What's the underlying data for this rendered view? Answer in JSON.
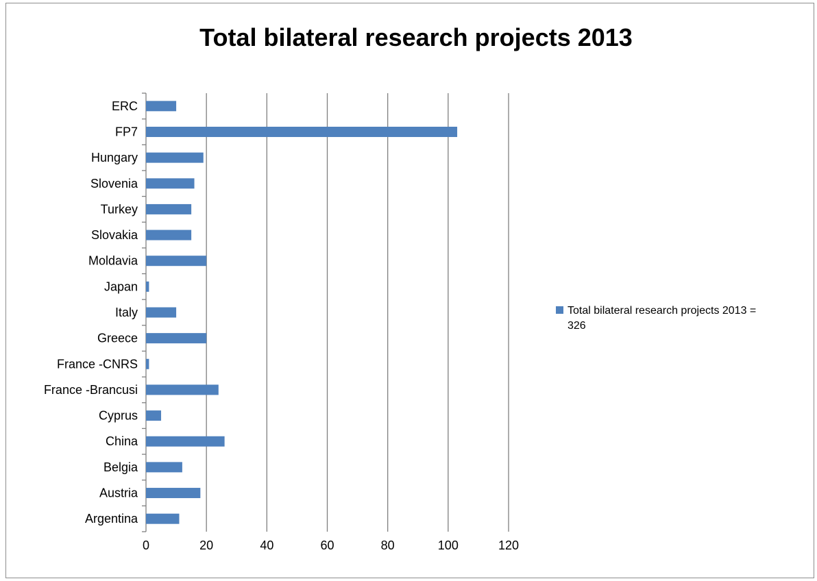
{
  "chart_data": {
    "type": "bar",
    "orientation": "horizontal",
    "title": "Total bilateral research projects 2013",
    "categories": [
      "Argentina",
      "Austria",
      "Belgia",
      "China",
      "Cyprus",
      "France -Brancusi",
      "France -CNRS",
      "Greece",
      "Italy",
      "Japan",
      "Moldavia",
      "Slovakia",
      "Turkey",
      "Slovenia",
      "Hungary",
      "FP7",
      "ERC"
    ],
    "series": [
      {
        "name": "Total bilateral research projects 2013 = 326",
        "color": "#4f81bd",
        "values": [
          11,
          18,
          12,
          26,
          5,
          24,
          1,
          20,
          10,
          1,
          20,
          15,
          15,
          16,
          19,
          103,
          10
        ]
      }
    ],
    "xlabel": "",
    "ylabel": "",
    "xlim": [
      0,
      120
    ],
    "xticks": [
      0,
      20,
      40,
      60,
      80,
      100,
      120
    ],
    "grid": "vertical",
    "legend_position": "right"
  }
}
